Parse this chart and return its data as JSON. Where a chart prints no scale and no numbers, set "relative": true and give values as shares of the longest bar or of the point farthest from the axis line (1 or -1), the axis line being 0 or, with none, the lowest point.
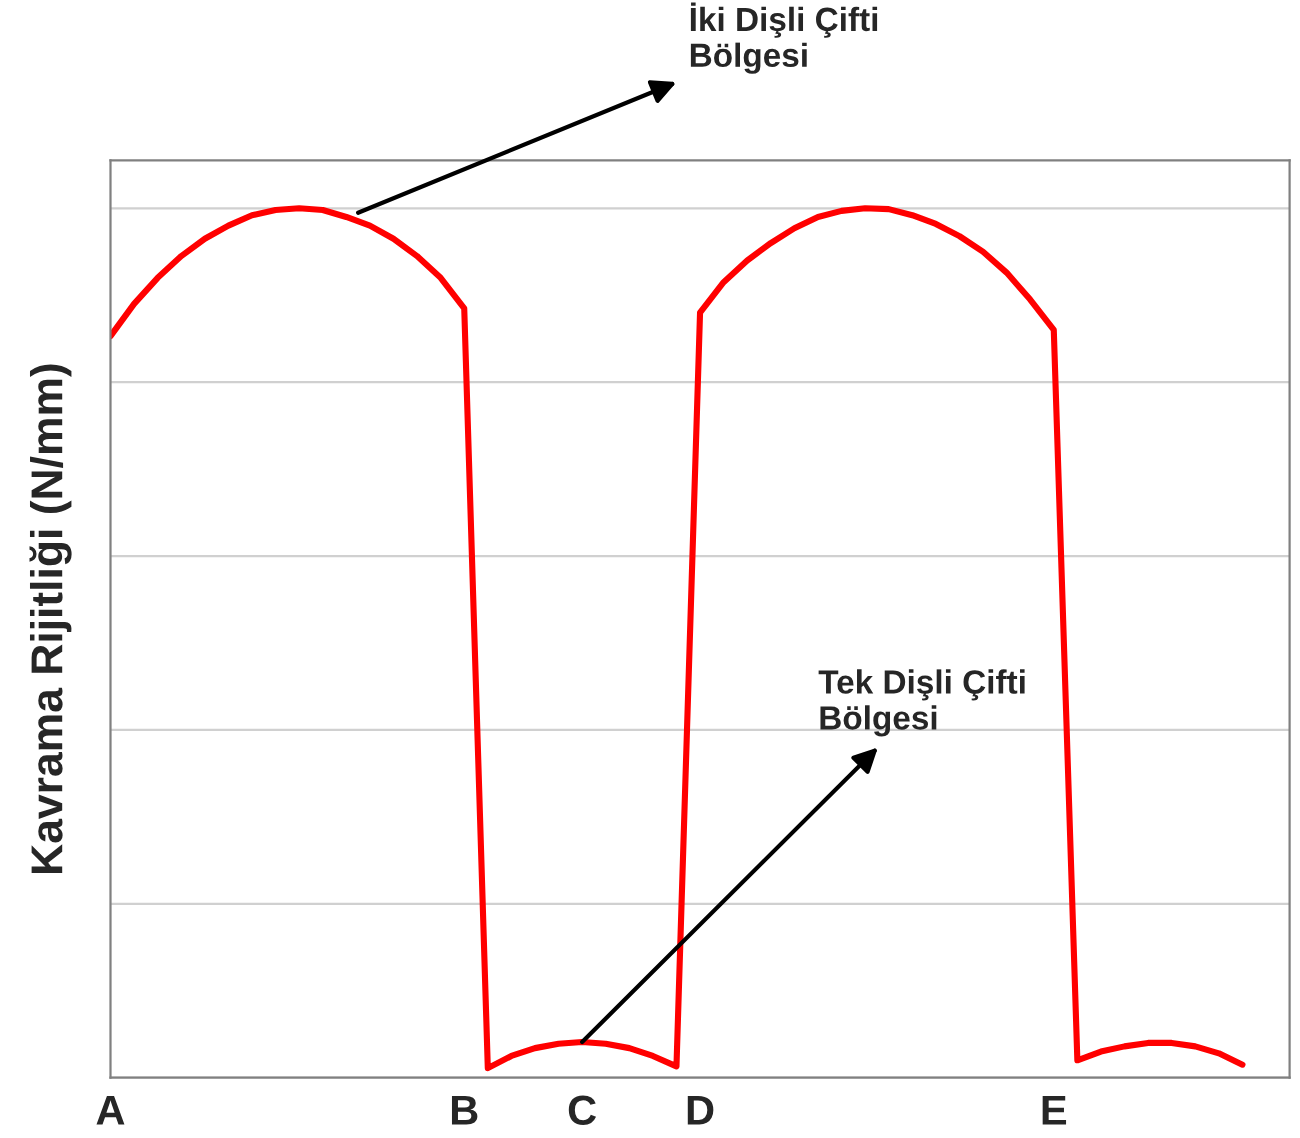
{
  "chart_data": {
    "type": "line",
    "relative": true,
    "ylabel": "Kavrama Rijitliği (N/mm)",
    "categories": [
      "A",
      null,
      null,
      null,
      null,
      null,
      null,
      null,
      null,
      null,
      null,
      null,
      null,
      null,
      null,
      "B",
      null,
      null,
      null,
      null,
      "C",
      null,
      null,
      null,
      null,
      "D",
      null,
      null,
      null,
      null,
      null,
      null,
      null,
      null,
      null,
      null,
      null,
      null,
      null,
      null,
      "E",
      null,
      null,
      null,
      null,
      null,
      null,
      null,
      null,
      null,
      null
    ],
    "series": [
      {
        "color": "#ff0000",
        "values": [
          0.853,
          0.89,
          0.92,
          0.945,
          0.965,
          0.98,
          0.992,
          0.998,
          1.0,
          0.998,
          0.99,
          0.98,
          0.965,
          0.945,
          0.92,
          0.885,
          0.011,
          0.025,
          0.034,
          0.039,
          0.041,
          0.039,
          0.034,
          0.025,
          0.013,
          0.88,
          0.915,
          0.94,
          0.96,
          0.977,
          0.99,
          0.997,
          1.0,
          0.999,
          0.992,
          0.982,
          0.968,
          0.95,
          0.926,
          0.895,
          0.86,
          0.02,
          0.03,
          0.036,
          0.04,
          0.04,
          0.036,
          0.028,
          0.015,
          null,
          null
        ]
      }
    ],
    "grid": "y",
    "marker": "none",
    "line_style": "solid",
    "annotations": [
      "İki Dişli Çifti\nBölgesi",
      {
        "text": "Tek Dişli Çifti\nBölgesi",
        "x": "C",
        "y": 0.041
      }
    ]
  }
}
